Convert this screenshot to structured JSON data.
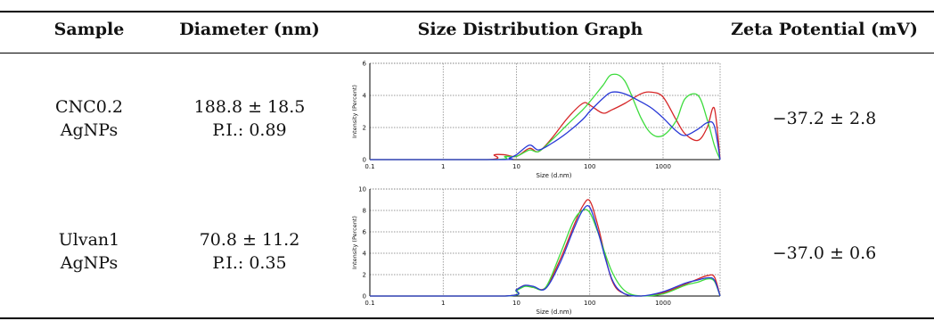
{
  "table": {
    "headers": [
      "Sample",
      "Diameter (nm)",
      "Size Distribution Graph",
      "Zeta Potential (mV)"
    ],
    "rows": [
      {
        "sample_line1": "CNC0.2",
        "sample_line2": "AgNPs",
        "diameter": "188.8 ± 18.5",
        "pi": "P.I.: 0.89",
        "zeta": "−37.2 ± 2.8"
      },
      {
        "sample_line1": "Ulvan1",
        "sample_line2": "AgNPs",
        "diameter": "70.8 ± 11.2",
        "pi": "P.I.: 0.35",
        "zeta": "−37.0 ± 0.6"
      }
    ]
  },
  "chart_data": [
    {
      "type": "line",
      "xlabel": "Size (d.nm)",
      "ylabel": "Intensity (Percent)",
      "x_scale": "log",
      "xlim": [
        0.1,
        6000
      ],
      "ylim": [
        0,
        6
      ],
      "x_ticks": [
        "0.1",
        "1",
        "10",
        "100",
        "1000"
      ],
      "y_ticks": [
        "0",
        "2",
        "4",
        "6"
      ],
      "grid": true,
      "series": [
        {
          "color": "#d62728",
          "x": [
            0.1,
            4,
            5,
            7,
            10,
            15,
            20,
            30,
            50,
            80,
            100,
            150,
            200,
            300,
            500,
            700,
            1000,
            1500,
            2000,
            3000,
            4000,
            5000,
            6000
          ],
          "y": [
            0,
            0,
            0.3,
            0.3,
            0.2,
            0.7,
            0.5,
            1.3,
            2.6,
            3.5,
            3.4,
            2.9,
            3.1,
            3.5,
            4.1,
            4.2,
            3.9,
            2.5,
            1.6,
            1.2,
            2.0,
            3.2,
            0
          ]
        },
        {
          "color": "#3ddc3d",
          "x": [
            0.1,
            5,
            7,
            10,
            15,
            20,
            30,
            50,
            80,
            100,
            150,
            200,
            300,
            500,
            700,
            1000,
            1500,
            2000,
            3000,
            4000,
            5000,
            6000
          ],
          "y": [
            0,
            0,
            0.2,
            0.2,
            0.6,
            0.5,
            1.2,
            2.2,
            3.1,
            3.6,
            4.6,
            5.3,
            4.9,
            2.6,
            1.6,
            1.5,
            2.4,
            3.8,
            4.0,
            2.5,
            0.9,
            0
          ]
        },
        {
          "color": "#2838d6",
          "x": [
            0.1,
            6,
            8,
            10,
            15,
            20,
            30,
            50,
            80,
            100,
            150,
            200,
            300,
            500,
            700,
            1000,
            1500,
            2000,
            3000,
            4000,
            5000,
            6000
          ],
          "y": [
            0,
            0,
            0.1,
            0.3,
            0.9,
            0.6,
            1.0,
            1.7,
            2.5,
            3.0,
            3.8,
            4.2,
            4.1,
            3.6,
            3.2,
            2.6,
            1.8,
            1.5,
            1.9,
            2.3,
            2.1,
            0
          ]
        }
      ]
    },
    {
      "type": "line",
      "xlabel": "Size (d.nm)",
      "ylabel": "Intensity (Percent)",
      "x_scale": "log",
      "xlim": [
        0.1,
        6000
      ],
      "ylim": [
        0,
        10
      ],
      "x_ticks": [
        "0.1",
        "1",
        "10",
        "100",
        "1000"
      ],
      "y_ticks": [
        "0",
        "2",
        "4",
        "6",
        "8",
        "10"
      ],
      "grid": true,
      "series": [
        {
          "color": "#d62728",
          "x": [
            0.1,
            7,
            10,
            13,
            17,
            25,
            40,
            60,
            80,
            100,
            130,
            200,
            300,
            500,
            1000,
            2000,
            3000,
            4000,
            5000,
            6000
          ],
          "y": [
            0,
            0,
            0.6,
            1.0,
            0.8,
            0.8,
            3.5,
            6.5,
            8.4,
            8.9,
            6.5,
            1.5,
            0.2,
            0,
            0.3,
            1.1,
            1.6,
            1.9,
            1.8,
            0
          ]
        },
        {
          "color": "#3ddc3d",
          "x": [
            0.1,
            7,
            10,
            13,
            17,
            25,
            40,
            60,
            80,
            100,
            130,
            200,
            300,
            500,
            1000,
            2000,
            3000,
            4000,
            5000,
            6000
          ],
          "y": [
            0,
            0,
            0.5,
            0.9,
            0.8,
            0.8,
            4.0,
            7.0,
            8.0,
            7.8,
            5.9,
            2.3,
            0.5,
            0,
            0.2,
            1.0,
            1.3,
            1.6,
            1.4,
            0
          ]
        },
        {
          "color": "#2838d6",
          "x": [
            0.1,
            7,
            10,
            13,
            17,
            25,
            40,
            60,
            80,
            100,
            130,
            200,
            300,
            500,
            1000,
            2000,
            3000,
            4000,
            5000,
            6000
          ],
          "y": [
            0,
            0,
            0.6,
            1.0,
            0.9,
            0.7,
            3.2,
            6.2,
            8.0,
            8.3,
            6.0,
            1.6,
            0.2,
            0,
            0.4,
            1.2,
            1.5,
            1.7,
            1.5,
            0
          ]
        }
      ]
    }
  ]
}
